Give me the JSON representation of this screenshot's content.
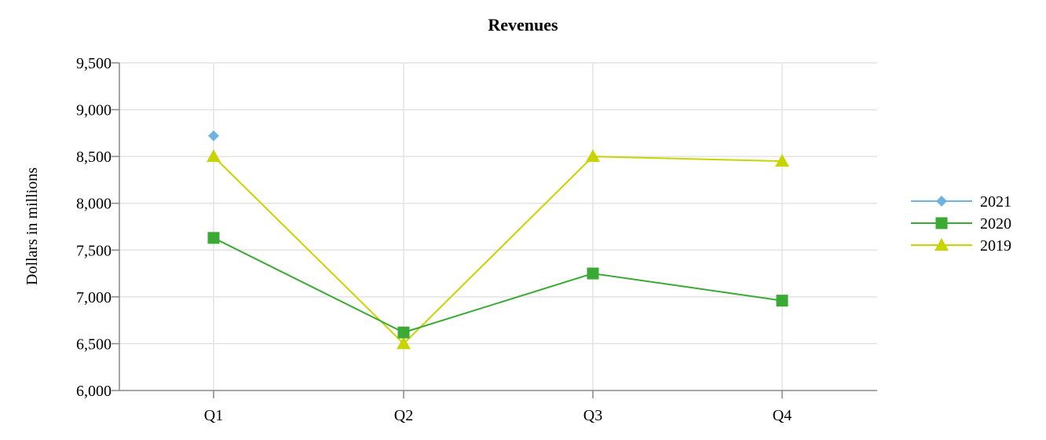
{
  "chart_data": {
    "type": "line",
    "title": "Revenues",
    "xlabel": "",
    "ylabel": "Dollars in millions",
    "categories": [
      "Q1",
      "Q2",
      "Q3",
      "Q4"
    ],
    "ylim": [
      6000,
      9500
    ],
    "yticks": [
      6000,
      6500,
      7000,
      7500,
      8000,
      8500,
      9000,
      9500
    ],
    "ytick_labels": [
      "6,000",
      "6,500",
      "7,000",
      "7,500",
      "8,000",
      "8,500",
      "9,000",
      "9,500"
    ],
    "grid": true,
    "legend_position": "right",
    "series": [
      {
        "name": "2021",
        "color": "#6fb3e0",
        "marker": "diamond",
        "values": [
          8720,
          null,
          null,
          null
        ]
      },
      {
        "name": "2020",
        "color": "#3aaa35",
        "marker": "square",
        "values": [
          7630,
          6620,
          7250,
          6960
        ]
      },
      {
        "name": "2019",
        "color": "#c8d400",
        "marker": "triangle",
        "values": [
          8500,
          6500,
          8500,
          8450
        ]
      }
    ]
  }
}
